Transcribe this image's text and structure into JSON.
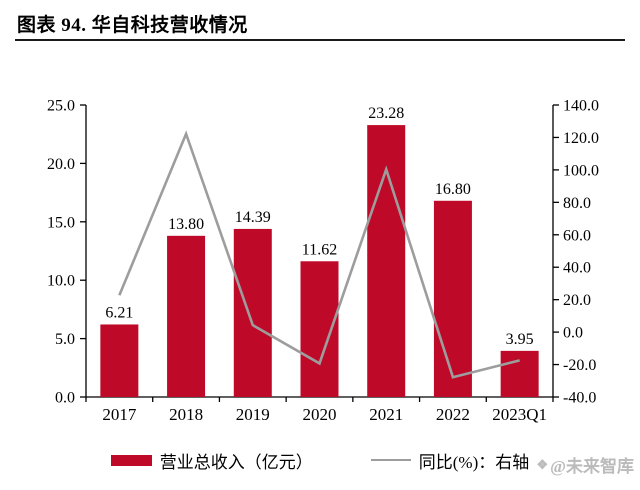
{
  "figure": {
    "title": "图表 94. 华自科技营收情况"
  },
  "colors": {
    "bar": "#BE0A28",
    "line": "#9D9D9D",
    "axis": "#000000",
    "rule": "#1A1A1A",
    "watermark": "#ABABAB"
  },
  "watermark": {
    "icon": "logo",
    "text": "@未来智库"
  },
  "chart_data": {
    "type": "bar",
    "subtype": "bar-line-dual-axis",
    "title": "华自科技营收情况",
    "categories": [
      "2017",
      "2018",
      "2019",
      "2020",
      "2021",
      "2022",
      "2023Q1"
    ],
    "series": [
      {
        "name": "营业总收入（亿元）",
        "type": "bar",
        "axis": "left",
        "values": [
          6.21,
          13.8,
          14.39,
          11.62,
          23.28,
          16.8,
          3.95
        ],
        "labels": [
          "6.21",
          "13.80",
          "14.39",
          "11.62",
          "23.28",
          "16.80",
          "3.95"
        ]
      },
      {
        "name": "同比(%)：右轴",
        "type": "line",
        "axis": "right",
        "values": [
          22.7,
          122.2,
          4.3,
          -19.3,
          100.3,
          -27.8,
          -17.4
        ]
      }
    ],
    "left_axis": {
      "min": 0,
      "max": 25,
      "step": 5,
      "tick_labels": [
        "0.0",
        "5.0",
        "10.0",
        "15.0",
        "20.0",
        "25.0"
      ]
    },
    "right_axis": {
      "min": -40,
      "max": 140,
      "step": 20,
      "tick_labels": [
        "-40.0",
        "-20.0",
        "0.0",
        "20.0",
        "40.0",
        "60.0",
        "80.0",
        "100.0",
        "120.0",
        "140.0"
      ]
    },
    "grid": false,
    "bar_labels": true,
    "legend_position": "bottom"
  }
}
